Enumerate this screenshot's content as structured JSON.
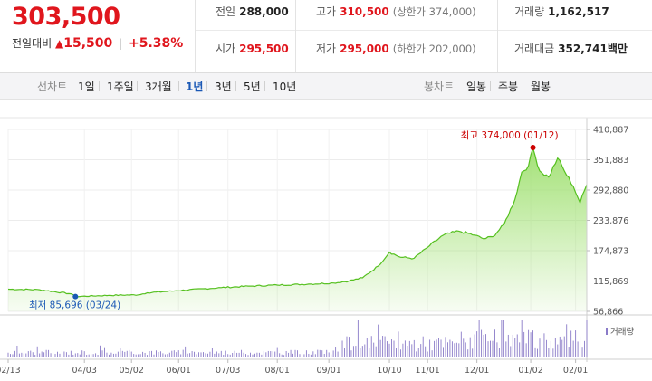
{
  "quote": {
    "price": "303,500",
    "change_label": "전일대비",
    "change_value": "15,500",
    "change_percent": "+5.38%",
    "direction": "up",
    "up_color": "#e0161d"
  },
  "stats": {
    "prev_close": {
      "label": "전일",
      "value": "288,000"
    },
    "high": {
      "label": "고가",
      "value": "310,500",
      "sub": "(상한가 374,000)"
    },
    "volume": {
      "label": "거래량",
      "value": "1,162,517"
    },
    "open": {
      "label": "시가",
      "value": "295,500"
    },
    "low": {
      "label": "저가",
      "value": "295,000",
      "sub": "(하한가 202,000)"
    },
    "amount": {
      "label": "거래대금",
      "value": "352,741",
      "unit": "백만"
    }
  },
  "tabs": {
    "line_label": "선차트",
    "line_periods": [
      "1일",
      "1주일",
      "3개월",
      "1년",
      "3년",
      "5년",
      "10년"
    ],
    "active_period": "1년",
    "candle_label": "봉차트",
    "candle_periods": [
      "일봉",
      "주봉",
      "월봉"
    ]
  },
  "chart_data": {
    "type": "area",
    "price_ticks": [
      "410,887",
      "351,883",
      "292,880",
      "233,876",
      "174,873",
      "115,869",
      "56,866"
    ],
    "ylim": [
      56866,
      410887
    ],
    "x_tick_labels": [
      "02/13",
      "04/03",
      "05/02",
      "06/01",
      "07/03",
      "08/01",
      "09/01",
      "10/10",
      "11/01",
      "12/01",
      "01/02",
      "02/01"
    ],
    "x_tick_index": [
      0,
      34,
      55,
      76,
      98,
      120,
      143,
      170,
      187,
      209,
      233,
      253
    ],
    "n_days": 259,
    "price_keypoints": [
      [
        0,
        100000
      ],
      [
        14,
        99000
      ],
      [
        28,
        91000
      ],
      [
        30,
        85696
      ],
      [
        45,
        88000
      ],
      [
        58,
        89000
      ],
      [
        62,
        93000
      ],
      [
        75,
        97000
      ],
      [
        95,
        103000
      ],
      [
        108,
        106000
      ],
      [
        120,
        108000
      ],
      [
        135,
        110000
      ],
      [
        145,
        112000
      ],
      [
        152,
        116000
      ],
      [
        158,
        122000
      ],
      [
        165,
        145000
      ],
      [
        170,
        172000
      ],
      [
        175,
        162000
      ],
      [
        181,
        160000
      ],
      [
        188,
        185000
      ],
      [
        194,
        205000
      ],
      [
        201,
        213000
      ],
      [
        208,
        205000
      ],
      [
        212,
        198000
      ],
      [
        216,
        202000
      ],
      [
        221,
        225000
      ],
      [
        226,
        275000
      ],
      [
        229,
        328000
      ],
      [
        232,
        340000
      ],
      [
        234,
        374000
      ],
      [
        237,
        330000
      ],
      [
        241,
        318000
      ],
      [
        245,
        355000
      ],
      [
        248,
        330000
      ],
      [
        252,
        300000
      ],
      [
        255,
        268000
      ],
      [
        258,
        303500
      ]
    ],
    "max_annotation": {
      "label": "최고",
      "value": "374,000",
      "date": "(01/12)",
      "index": 234,
      "price": 374000,
      "color": "#cc0000"
    },
    "min_annotation": {
      "label": "최저",
      "value": "85,696",
      "date": "(03/24)",
      "index": 30,
      "price": 85696,
      "color": "#1a58b5"
    },
    "volume_label": "거래량",
    "line_color": "#55c01f",
    "fill_color": "#9fe070",
    "volume_color": "#8a7bc8"
  }
}
